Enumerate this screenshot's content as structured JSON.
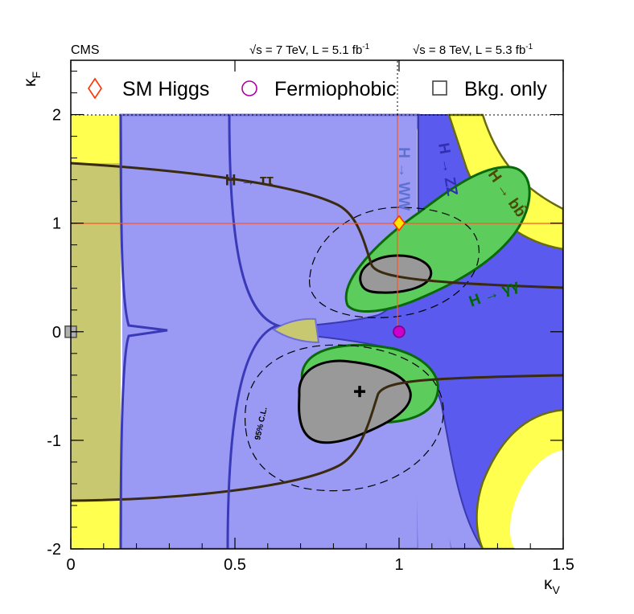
{
  "chart_data": {
    "type": "scatter",
    "experiment": "CMS",
    "energy_lumi_7": "√s = 7 TeV, L = 5.1 fb",
    "energy_lumi_7_sup": "-1",
    "energy_lumi_8": "√s = 8 TeV, L = 5.3 fb",
    "energy_lumi_8_sup": "-1",
    "xlabel": "κ",
    "xlabel_sub": "V",
    "ylabel": "κ",
    "ylabel_sub": "F",
    "xlim": [
      0,
      1.5
    ],
    "ylim": [
      -2,
      2.5
    ],
    "x_tick_labels": [
      "0",
      "0.5",
      "1",
      "1.5"
    ],
    "y_tick_labels": [
      "-2",
      "-1",
      "0",
      "1",
      "2"
    ],
    "legend": {
      "position": "top",
      "entries": [
        {
          "label": "SM Higgs",
          "marker": "diamond-open",
          "color": "#ff3300"
        },
        {
          "label": "Fermiophobic",
          "marker": "circle-open",
          "color": "#b000a0"
        },
        {
          "label": "Bkg. only",
          "marker": "square-open",
          "color": "#444444"
        }
      ]
    },
    "points": [
      {
        "name": "SM Higgs",
        "x": 1.0,
        "y": 1.0,
        "color": "#ffe600"
      },
      {
        "name": "Fermiophobic",
        "x": 1.0,
        "y": 0.0,
        "color": "#cc00cc"
      },
      {
        "name": "Bkg. only",
        "x": 0.0,
        "y": 0.0,
        "color": "#b0b0b0"
      },
      {
        "name": "best fit",
        "x": 0.88,
        "y": -0.55,
        "color": "#000000"
      }
    ],
    "channel_labels": [
      {
        "text": "H → ττ",
        "x": 0.47,
        "y": 1.35,
        "color": "#3a2a10"
      },
      {
        "text": "H → WW",
        "x": 1.0,
        "y": 1.7,
        "color": "#6070d0"
      },
      {
        "text": "H → ZZ",
        "x": 1.12,
        "y": 1.73,
        "color": "#3030b0"
      },
      {
        "text": "H → bb̄",
        "x": 1.27,
        "y": 1.45,
        "color": "#4a4a00"
      },
      {
        "text": "H → γγ",
        "x": 1.22,
        "y": 0.23,
        "color": "#006600"
      }
    ],
    "annotation_cl": "95% C.L.",
    "regions": {
      "yellow": "#ffff50",
      "olive": "#c8c870",
      "light_blue": "#9a9af5",
      "dark_blue": "#5a5aee",
      "green": "#5ccc5c",
      "gray": "#999999"
    }
  }
}
